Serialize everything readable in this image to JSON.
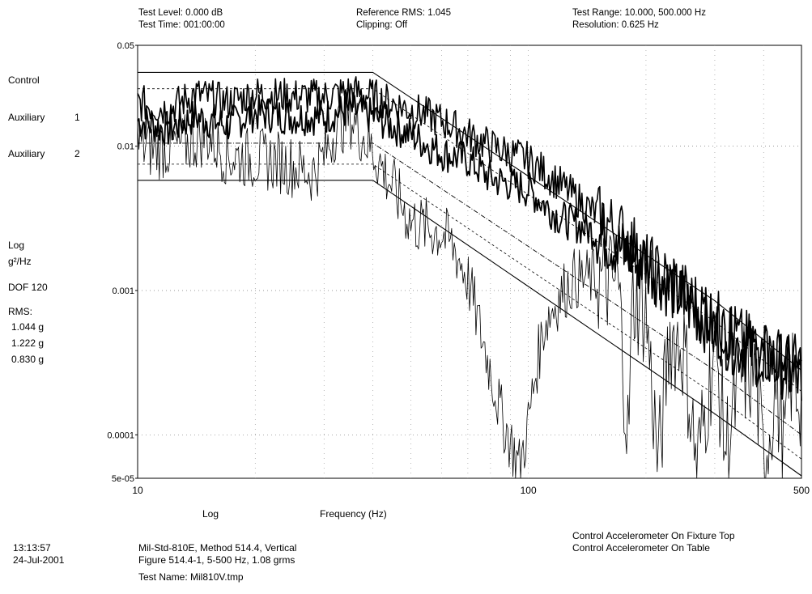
{
  "header": {
    "test_level": "Test Level: 0.000 dB",
    "test_time": "Test Time: 001:00:00",
    "reference_rms": "Reference RMS: 1.045",
    "clipping": "Clipping: Off",
    "test_range": "Test Range: 10.000, 500.000 Hz",
    "resolution": "Resolution: 0.625 Hz"
  },
  "sidebar": {
    "control": "Control",
    "aux1_label": "Auxiliary",
    "aux1_num": "1",
    "aux2_label": "Auxiliary",
    "aux2_num": "2",
    "log": "Log",
    "unit": "g²/Hz",
    "dof": "DOF 120",
    "rms_label": "RMS:",
    "rms_values": [
      "1.044 g",
      "1.222 g",
      "0.830 g"
    ]
  },
  "footer": {
    "time": "13:13:57",
    "date": "24-Jul-2001",
    "desc1": "Mil-Std-810E, Method 514.4, Vertical",
    "desc2": "Figure 514.4-1, 5-500 Hz, 1.08 grms",
    "test_name": "Test Name: Mil810V.tmp",
    "note1": "Control Accelerometer  On Fixture Top",
    "note2": "Control Accelerometer  On Table"
  },
  "chart_data": {
    "type": "line",
    "xscale": "log",
    "yscale": "log",
    "xlim": [
      10,
      500
    ],
    "ylim": [
      5e-05,
      0.05
    ],
    "xlabel": "Frequency (Hz)",
    "xlabel_prefix": "Log",
    "x_ticks": [
      "10",
      "100",
      "500"
    ],
    "y_ticks": [
      "0.05",
      "0.01",
      "0.001",
      "0.0001",
      "5e-05"
    ],
    "grid": true,
    "series": [
      {
        "role": "abort-upper",
        "color": "#000000",
        "x": [
          10,
          40,
          300,
          500
        ],
        "y": [
          0.0325,
          0.0325,
          0.00085,
          0.00028
        ]
      },
      {
        "role": "alarm-upper",
        "color": "#000000",
        "x": [
          10,
          40,
          300,
          500
        ],
        "y": [
          0.025,
          0.025,
          0.00061,
          0.0002
        ]
      },
      {
        "role": "reference",
        "color": "#000000",
        "x": [
          10,
          40,
          300,
          500
        ],
        "y": [
          0.0105,
          0.0105,
          0.00028,
          0.0001
        ]
      },
      {
        "role": "alarm-lower",
        "color": "#000000",
        "x": [
          10,
          40,
          300,
          500
        ],
        "y": [
          0.0075,
          0.0075,
          0.00019,
          6.8e-05
        ]
      },
      {
        "role": "abort-lower",
        "color": "#000000",
        "x": [
          10,
          40,
          300,
          500
        ],
        "y": [
          0.0058,
          0.0058,
          0.00014,
          5.2e-05
        ]
      },
      {
        "role": "control",
        "color": "#000000",
        "x": [
          10,
          12,
          14,
          17,
          20,
          25,
          30,
          35,
          40,
          50,
          60,
          70,
          80,
          100,
          120,
          150,
          180,
          200,
          250,
          300,
          350,
          400,
          450,
          500
        ],
        "y": [
          0.015,
          0.013,
          0.016,
          0.014,
          0.017,
          0.016,
          0.016,
          0.018,
          0.016,
          0.012,
          0.009,
          0.008,
          0.006,
          0.005,
          0.0032,
          0.0025,
          0.0018,
          0.00155,
          0.00085,
          0.00055,
          0.0004,
          0.00035,
          0.0003,
          0.00023
        ]
      },
      {
        "role": "auxiliary-1",
        "color": "#000000",
        "x": [
          10,
          12,
          14,
          17,
          20,
          25,
          30,
          35,
          40,
          50,
          60,
          70,
          80,
          100,
          120,
          150,
          180,
          200,
          250,
          300,
          350,
          400,
          450,
          500
        ],
        "y": [
          0.02,
          0.018,
          0.023,
          0.02,
          0.023,
          0.022,
          0.022,
          0.024,
          0.022,
          0.018,
          0.015,
          0.012,
          0.01,
          0.008,
          0.0055,
          0.0033,
          0.0023,
          0.0015,
          0.00095,
          0.00062,
          0.00045,
          0.00038,
          0.00032,
          0.00029
        ]
      },
      {
        "role": "auxiliary-2",
        "color": "#000000",
        "x": [
          10,
          11,
          13,
          15,
          17,
          20,
          23,
          26,
          28,
          30,
          32,
          35,
          40,
          45,
          50,
          55,
          60,
          65,
          70,
          75,
          80,
          85,
          90,
          95,
          100,
          105,
          110,
          120,
          130,
          150,
          170,
          180,
          185,
          200,
          215,
          230,
          250,
          270,
          300,
          320,
          350,
          380,
          400,
          430,
          450,
          470,
          500
        ],
        "y": [
          0.0105,
          0.0095,
          0.01,
          0.012,
          0.0085,
          0.0082,
          0.0078,
          0.007,
          0.0065,
          0.0085,
          0.013,
          0.016,
          0.0093,
          0.0052,
          0.003,
          0.0027,
          0.0025,
          0.0019,
          0.0012,
          0.00055,
          0.00028,
          0.00014,
          9e-05,
          6e-05,
          0.00012,
          0.0003,
          0.0006,
          0.0009,
          0.0012,
          0.0012,
          0.0011,
          9e-05,
          0.0009,
          0.0007,
          6e-05,
          0.0005,
          0.0004,
          6e-05,
          0.00042,
          8e-05,
          0.00025,
          0.00028,
          6e-05,
          0.00022,
          8e-05,
          0.00025,
          0.00018
        ]
      }
    ]
  }
}
